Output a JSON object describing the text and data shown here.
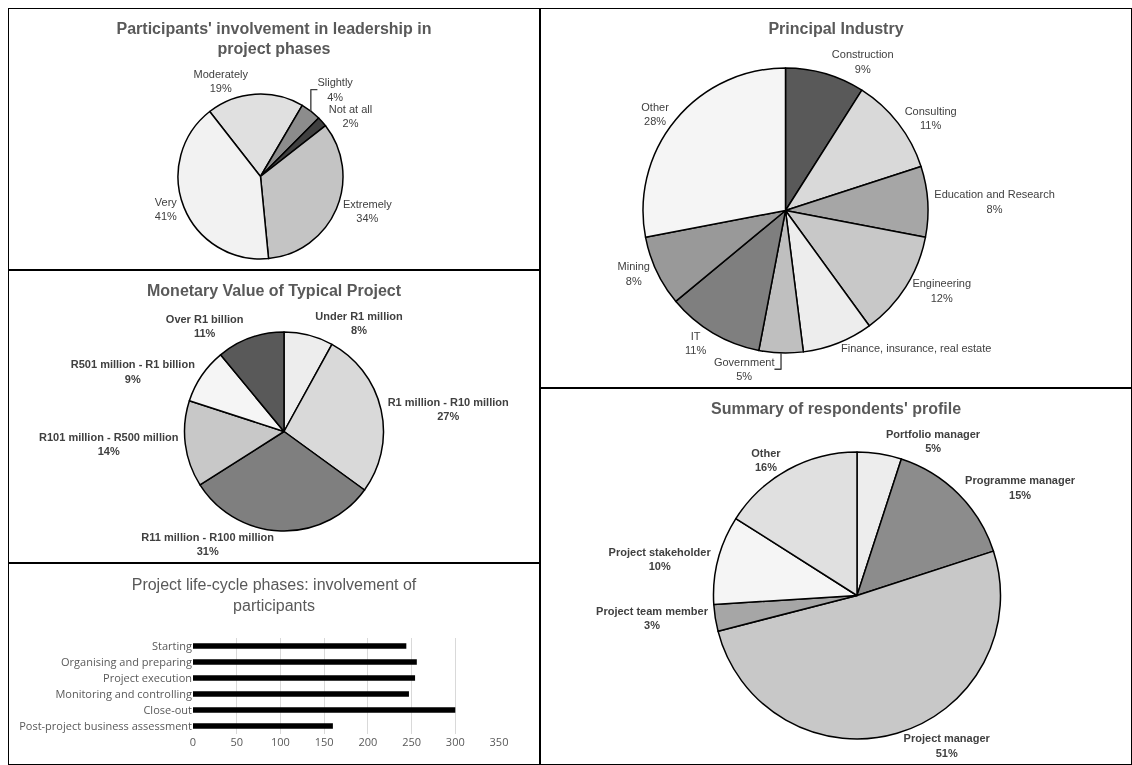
{
  "chart_data": [
    {
      "type": "pie",
      "title": "Participants' involvement in leadership in project phases",
      "categories": [
        "Moderately",
        "Slightly",
        "Not at all",
        "Extremely",
        "Very"
      ],
      "values": [
        19,
        4,
        2,
        34,
        41
      ],
      "value_labels": [
        "19%",
        "4%",
        "2%",
        "34%",
        "41%"
      ],
      "colors": [
        "#e0e0e0",
        "#8c8c8c",
        "#404040",
        "#c4c4c4",
        "#f2f2f2"
      ],
      "legend": false
    },
    {
      "type": "pie",
      "title": "Principal Industry",
      "categories": [
        "Construction",
        "Consulting",
        "Education and Research",
        "Engineering",
        "Finance, insurance, real estate",
        "Government",
        "IT",
        "Mining",
        "Other"
      ],
      "values": [
        9,
        11,
        8,
        12,
        8,
        5,
        11,
        8,
        28
      ],
      "value_labels": [
        "9%",
        "11%",
        "8%",
        "12%",
        null,
        "5%",
        "11%",
        "8%",
        "28%"
      ],
      "colors": [
        "#595959",
        "#d9d9d9",
        "#a6a6a6",
        "#c8c8c8",
        "#ededed",
        "#bfbfbf",
        "#7f7f7f",
        "#999999",
        "#f5f5f5"
      ],
      "legend": false
    },
    {
      "type": "pie",
      "title": "Monetary Value of Typical Project",
      "categories": [
        "Under R1 million",
        "R1 million - R10 million",
        "R11 million - R100 million",
        "R101 million - R500 million",
        "R501 million - R1 billion",
        "Over R1 billion"
      ],
      "values": [
        8,
        27,
        31,
        14,
        9,
        11
      ],
      "value_labels": [
        "8%",
        "27%",
        "31%",
        "14%",
        "9%",
        "11%"
      ],
      "colors": [
        "#ededed",
        "#d9d9d9",
        "#7f7f7f",
        "#c8c8c8",
        "#f5f5f5",
        "#595959"
      ],
      "legend": false
    },
    {
      "type": "pie",
      "title": "Summary of respondents' profile",
      "categories": [
        "Portfolio manager",
        "Programme manager",
        "Project manager",
        "Project team member",
        "Project stakeholder",
        "Other"
      ],
      "values": [
        5,
        15,
        51,
        3,
        10,
        16
      ],
      "value_labels": [
        "5%",
        "15%",
        "51%",
        "3%",
        "10%",
        "16%"
      ],
      "colors": [
        "#ededed",
        "#8c8c8c",
        "#c8c8c8",
        "#a6a6a6",
        "#f5f5f5",
        "#e0e0e0"
      ],
      "legend": false
    },
    {
      "type": "bar",
      "orientation": "horizontal",
      "title": "Project life-cycle phases: involvement of participants",
      "categories": [
        "Starting",
        "Organising and preparing",
        "Project execution",
        "Monitoring and controlling",
        "Close-out",
        "Post-project business assessment"
      ],
      "values": [
        244,
        256,
        254,
        247,
        300,
        160
      ],
      "color": "#000000",
      "xlim": [
        0,
        350
      ],
      "xticks": [
        0,
        50,
        100,
        150,
        200,
        250,
        300,
        350
      ],
      "grid": "x",
      "legend": false
    }
  ]
}
